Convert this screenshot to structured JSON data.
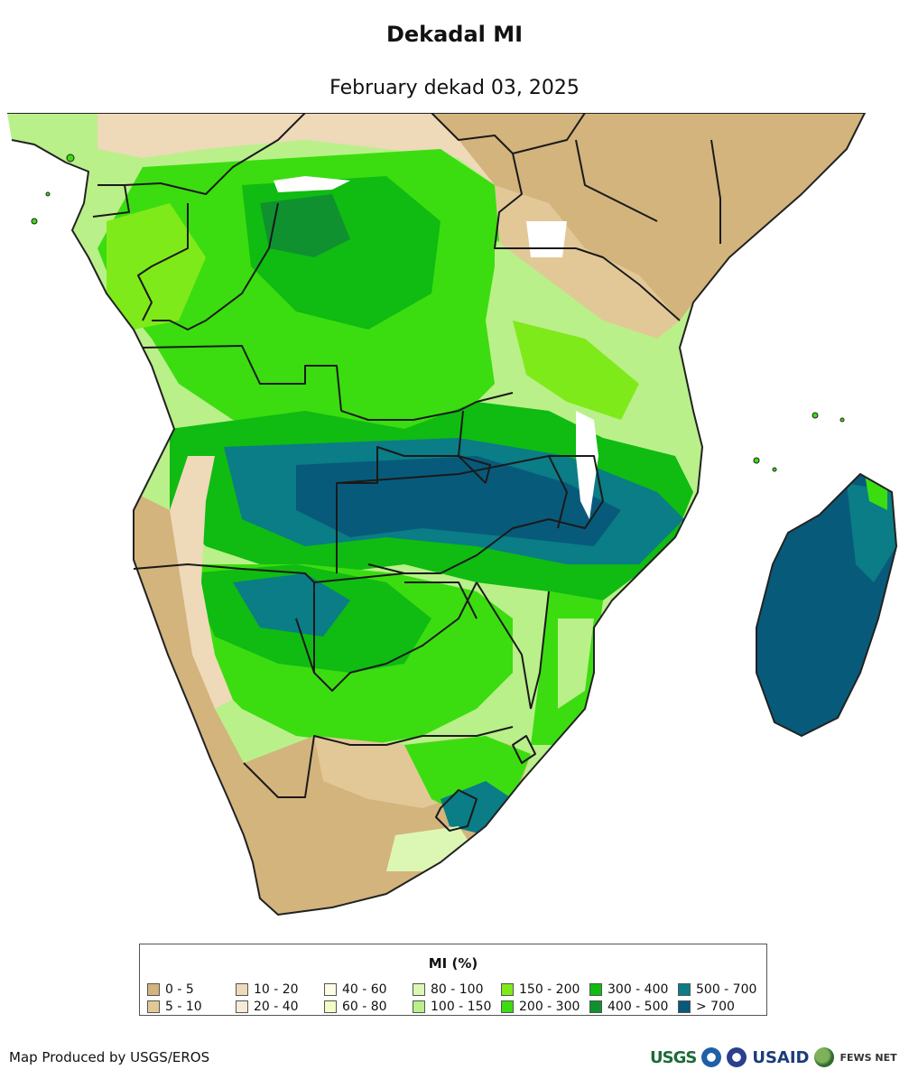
{
  "title": "Dekadal MI",
  "subtitle": "February dekad 03, 2025",
  "legend": {
    "title": "MI (%)",
    "items": [
      {
        "label": "0 - 5",
        "color": "#d2b47c"
      },
      {
        "label": "5 - 10",
        "color": "#e2c897"
      },
      {
        "label": "10 - 20",
        "color": "#eed9b9"
      },
      {
        "label": "20 - 40",
        "color": "#f6ead8"
      },
      {
        "label": "40 - 60",
        "color": "#fdfde6"
      },
      {
        "label": "60 - 80",
        "color": "#f3fcc7"
      },
      {
        "label": "80 - 100",
        "color": "#dcf7b4"
      },
      {
        "label": "100 - 150",
        "color": "#b9f08a"
      },
      {
        "label": "150 - 200",
        "color": "#7fea1a"
      },
      {
        "label": "200 - 300",
        "color": "#3bdd10"
      },
      {
        "label": "300 - 400",
        "color": "#10bb12"
      },
      {
        "label": "400 - 500",
        "color": "#0f9130"
      },
      {
        "label": "500 - 700",
        "color": "#0a7d86"
      },
      {
        "label": "> 700",
        "color": "#085a7a"
      }
    ]
  },
  "credit": "Map Produced by USGS/EROS",
  "logos": {
    "usgs": "USGS",
    "usaid": "USAID",
    "fews": "FEWS NET"
  }
}
